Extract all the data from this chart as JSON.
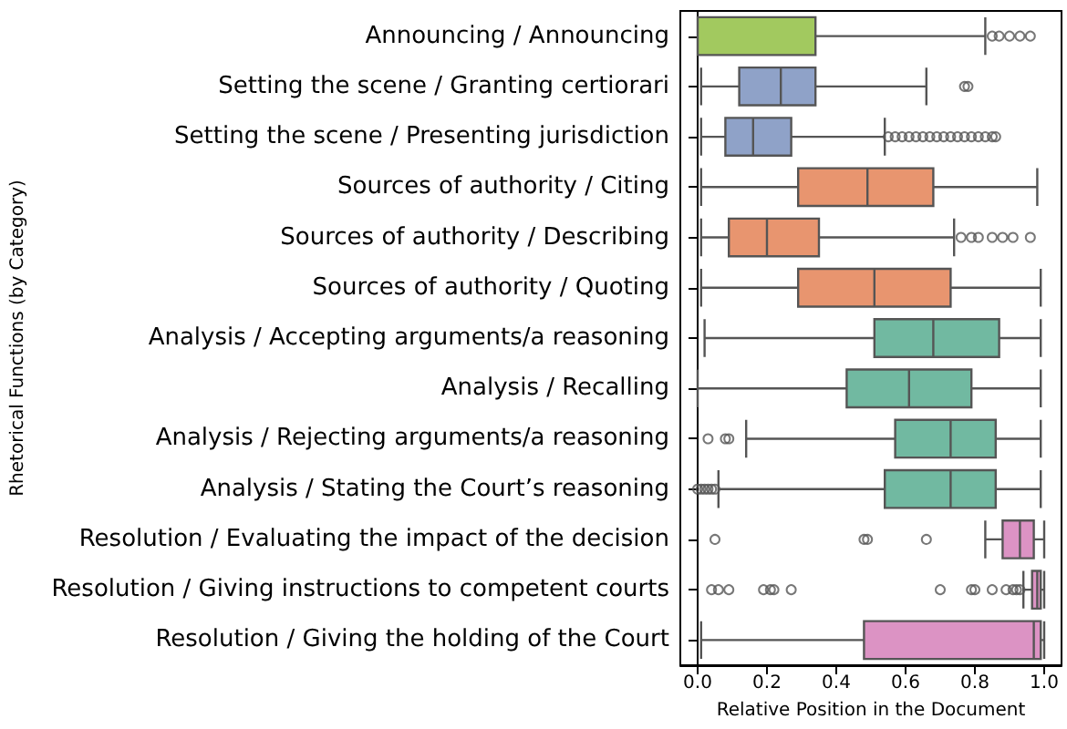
{
  "chart_data": {
    "type": "box",
    "orientation": "horizontal",
    "xlabel": "Relative Position in the Document",
    "ylabel": "Rhetorical Functions (by Category)",
    "categories": [
      "Announcing / Announcing",
      "Setting the scene / Granting certiorari",
      "Setting the scene / Presenting jurisdiction",
      "Sources of authority / Citing",
      "Sources of authority / Describing",
      "Sources of authority / Quoting",
      "Analysis / Accepting arguments/a reasoning",
      "Analysis / Recalling",
      "Analysis / Rejecting arguments/a reasoning",
      "Analysis / Stating the Court’s reasoning",
      "Resolution / Evaluating the impact of the decision",
      "Resolution / Giving instructions to competent courts",
      "Resolution / Giving the holding of the Court"
    ],
    "colors": [
      "#a2c95f",
      "#8fa2c8",
      "#8fa2c8",
      "#e8956f",
      "#e8956f",
      "#e8956f",
      "#71b9a1",
      "#71b9a1",
      "#71b9a1",
      "#71b9a1",
      "#dc93c4",
      "#dc93c4",
      "#dc93c4"
    ],
    "boxes": [
      {
        "low": 0,
        "q1": 0,
        "median": 0,
        "q3": 0.34,
        "high": 0.83,
        "outliers": [
          0.85,
          0.87,
          0.9,
          0.93,
          0.96
        ]
      },
      {
        "low": 0.01,
        "q1": 0.12,
        "median": 0.24,
        "q3": 0.34,
        "high": 0.66,
        "outliers": [
          0.77,
          0.78
        ]
      },
      {
        "low": 0.01,
        "q1": 0.08,
        "median": 0.16,
        "q3": 0.27,
        "high": 0.54,
        "outliers": [
          0.55,
          0.57,
          0.59,
          0.61,
          0.63,
          0.65,
          0.67,
          0.69,
          0.71,
          0.73,
          0.75,
          0.77,
          0.79,
          0.81,
          0.83,
          0.85,
          0.86
        ]
      },
      {
        "low": 0.01,
        "q1": 0.29,
        "median": 0.49,
        "q3": 0.68,
        "high": 0.98
      },
      {
        "low": 0.01,
        "q1": 0.09,
        "median": 0.2,
        "q3": 0.35,
        "high": 0.74,
        "outliers": [
          0.76,
          0.79,
          0.81,
          0.85,
          0.88,
          0.91,
          0.96
        ]
      },
      {
        "low": 0.01,
        "q1": 0.29,
        "median": 0.51,
        "q3": 0.73,
        "high": 0.99
      },
      {
        "low": 0.02,
        "q1": 0.51,
        "median": 0.68,
        "q3": 0.87,
        "high": 0.99
      },
      {
        "low": 0,
        "q1": 0.43,
        "median": 0.61,
        "q3": 0.79,
        "high": 0.99
      },
      {
        "low": 0.14,
        "q1": 0.57,
        "median": 0.73,
        "q3": 0.86,
        "high": 0.99,
        "outliers": [
          0.03,
          0.08,
          0.09
        ]
      },
      {
        "low": 0.06,
        "q1": 0.54,
        "median": 0.73,
        "q3": 0.86,
        "high": 0.99,
        "outliers": [
          0,
          0.01,
          0.02,
          0.03,
          0.04,
          0.05
        ]
      },
      {
        "low": 0.83,
        "q1": 0.88,
        "median": 0.93,
        "q3": 0.97,
        "high": 1,
        "outliers": [
          0.05,
          0.48,
          0.49,
          0.66
        ]
      },
      {
        "low": 0.94,
        "q1": 0.965,
        "median": 0.98,
        "q3": 0.99,
        "high": 1,
        "outliers": [
          0.04,
          0.06,
          0.09,
          0.19,
          0.21,
          0.22,
          0.27,
          0.7,
          0.79,
          0.8,
          0.85,
          0.89,
          0.91,
          0.92,
          0.93
        ]
      },
      {
        "low": 0.01,
        "q1": 0.48,
        "median": 0.97,
        "q3": 0.99,
        "high": 1
      }
    ],
    "xlim": [
      -0.05,
      1.05
    ],
    "xticks": [
      {
        "value": 0,
        "label": "0.0"
      },
      {
        "value": 0.2,
        "label": "0.2"
      },
      {
        "value": 0.4,
        "label": "0.4"
      },
      {
        "value": 0.6,
        "label": "0.6"
      },
      {
        "value": 0.8,
        "label": "0.8"
      },
      {
        "value": 1,
        "label": "1.0"
      }
    ]
  }
}
